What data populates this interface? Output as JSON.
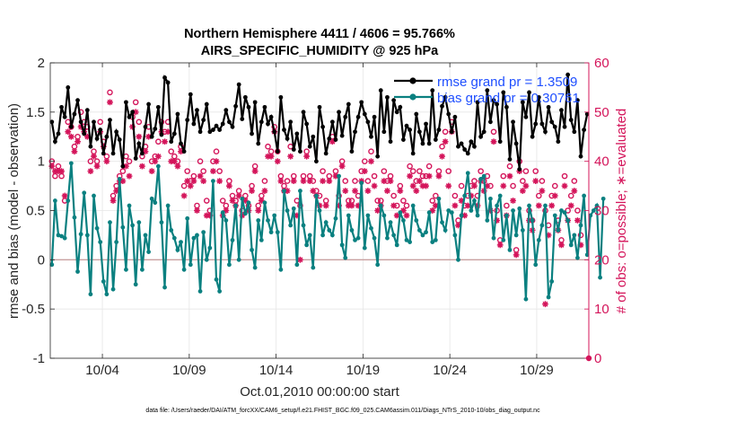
{
  "chart_data": {
    "type": "line",
    "title": [
      "Northern Hemisphere 4411 / 4606 = 95.766%",
      "AIRS_SPECIFIC_HUMIDITY @ 925 hPa"
    ],
    "xlabel": "Oct.01,2010 00:00:00 start",
    "ylabel_left": "rmse and bias (model - observation)",
    "ylabel_right": "# of obs: o=possible; ∗=evaluated",
    "footer": "data file: /Users/raeder/DAI/ATM_forcXX/CAM6_setup/f.e21.FHIST_BGC.f09_025.CAM6assim.011/Diags_NTrS_2010-10/obs_diag_output.nc",
    "xlim": [
      1.0,
      32.0
    ],
    "ylim_left": [
      -1,
      2
    ],
    "ylim_right": [
      0,
      60
    ],
    "x_ticks": [
      4,
      9,
      14,
      19,
      24,
      29
    ],
    "x_tick_labels": [
      "10/04",
      "10/09",
      "10/14",
      "10/19",
      "10/24",
      "10/29"
    ],
    "y_ticks_left": [
      -1,
      -0.5,
      0,
      0.5,
      1,
      1.5,
      2
    ],
    "y_tick_labels_left": [
      "-1",
      "-0.5",
      "0",
      "0.5",
      "1",
      "1.5",
      "2"
    ],
    "y_ticks_right": [
      0,
      10,
      20,
      30,
      40,
      50,
      60
    ],
    "y_tick_labels_right": [
      "0",
      "10",
      "20",
      "30",
      "40",
      "50",
      "60"
    ],
    "legend": [
      {
        "label": "rmse grand pr = 1.3509",
        "color": "#000000"
      },
      {
        "label": "bias grand pr = 0.30761",
        "color": "#008080"
      }
    ],
    "colors": {
      "rmse": "#000000",
      "bias": "#0a8080",
      "obs": "#d4145a",
      "legend_text": "#1f4fff",
      "zero_line": "#c9a0a0"
    },
    "series": [
      {
        "name": "rmse",
        "values": [
          1.4,
          1.2,
          1.28,
          1.55,
          1.45,
          1.75,
          1.35,
          1.48,
          1.62,
          1.4,
          1.28,
          1.52,
          1.15,
          1.4,
          1.23,
          1.32,
          1.08,
          1.25,
          1.42,
          1.08,
          1.3,
          1.22,
          0.95,
          1.6,
          1.45,
          1.5,
          1.03,
          1.18,
          1.08,
          1.35,
          1.58,
          1.25,
          1.33,
          1.55,
          1.27,
          1.85,
          1.8,
          1.2,
          1.28,
          1.48,
          1.18,
          1.1,
          1.42,
          1.68,
          1.38,
          1.52,
          1.3,
          1.42,
          1.58,
          1.3,
          1.32,
          1.36,
          1.32,
          1.38,
          1.52,
          1.4,
          1.35,
          1.56,
          1.78,
          1.43,
          1.65,
          1.55,
          1.28,
          1.6,
          1.18,
          1.4,
          1.55,
          1.38,
          1.45,
          1.3,
          1.1,
          1.65,
          1.32,
          1.23,
          1.4,
          1.12,
          1.28,
          1.1,
          1.5,
          1.38,
          1.15,
          1.25,
          1.0,
          1.55,
          1.35,
          1.08,
          1.23,
          1.4,
          1.22,
          1.5,
          1.26,
          1.45,
          1.58,
          1.1,
          1.3,
          1.45,
          1.6,
          1.48,
          1.4,
          1.25,
          1.45,
          1.05,
          1.72,
          1.3,
          1.65,
          1.2,
          1.62,
          1.5,
          1.55,
          1.22,
          1.36,
          1.32,
          1.08,
          1.48,
          1.3,
          1.18,
          1.38,
          1.18,
          1.72,
          1.22,
          1.32,
          1.56,
          1.65,
          1.48,
          1.3,
          1.45,
          1.15,
          1.18,
          1.12,
          1.08,
          1.2,
          1.15,
          1.6,
          1.25,
          1.3,
          1.72,
          1.4,
          1.62,
          1.58,
          1.2,
          1.7,
          1.55,
          1.02,
          1.4,
          1.18,
          0.92,
          1.6,
          1.45,
          1.7,
          1.25,
          1.38,
          1.65,
          1.38,
          1.3,
          1.55,
          1.4,
          1.35,
          1.2,
          1.52,
          1.35,
          1.88,
          1.42,
          1.3,
          1.62,
          1.05,
          1.32,
          1.48
        ]
      },
      {
        "name": "bias",
        "values": [
          -0.05,
          0.6,
          0.25,
          0.24,
          0.22,
          0.6,
          0.98,
          0.43,
          -0.12,
          0.26,
          0.68,
          0.25,
          -0.35,
          0.65,
          0.32,
          0.18,
          -0.22,
          -0.35,
          0.38,
          -0.3,
          0.18,
          0.82,
          0.33,
          -0.1,
          0.55,
          0.35,
          -0.25,
          0.38,
          -0.1,
          0.25,
          0.08,
          0.62,
          0.58,
          0.95,
          0.38,
          -0.28,
          0.55,
          0.3,
          0.22,
          0.1,
          0.18,
          -0.1,
          0.42,
          -0.05,
          0.22,
          0.25,
          -0.32,
          0.28,
          0.0,
          0.12,
          0.8,
          -0.2,
          -0.32,
          0.48,
          0.4,
          -0.05,
          0.2,
          0.55,
          0.0,
          0.62,
          0.47,
          0.58,
          0.1,
          -0.08,
          0.4,
          0.2,
          0.58,
          0.4,
          0.28,
          0.45,
          0.28,
          -0.1,
          0.7,
          0.5,
          0.35,
          0.52,
          -0.05,
          0.7,
          0.35,
          0.15,
          0.25,
          -0.08,
          0.65,
          0.5,
          0.25,
          0.38,
          0.3,
          0.25,
          0.42,
          0.85,
          0.15,
          0.02,
          0.45,
          0.3,
          0.2,
          0.22,
          0.78,
          0.12,
          0.45,
          0.32,
          0.22,
          -0.05,
          0.55,
          0.45,
          0.22,
          0.38,
          0.25,
          0.15,
          0.48,
          0.4,
          0.2,
          0.18,
          0.55,
          0.4,
          0.3,
          0.25,
          0.28,
          0.48,
          0.18,
          0.2,
          0.62,
          0.38,
          0.3,
          0.5,
          0.48,
          0.25,
          0.0,
          0.45,
          0.65,
          0.88,
          0.5,
          0.6,
          0.45,
          0.82,
          0.85,
          0.4,
          0.62,
          0.22,
          0.55,
          0.65,
          0.2,
          0.45,
          0.1,
          0.5,
          0.25,
          0.52,
          0.3,
          -0.4,
          0.55,
          0.4,
          -0.05,
          0.2,
          0.35,
          0.55,
          -0.38,
          -0.22,
          0.45,
          0.3,
          0.5,
          0.48,
          0.4,
          0.15,
          0.25,
          0.02,
          0.35,
          0.65,
          0.05,
          0.45,
          0.5,
          0.55,
          -0.18,
          0.62
        ]
      },
      {
        "name": "obs_possible",
        "values": [
          40,
          37,
          39,
          37,
          32,
          48,
          47,
          43,
          45,
          50,
          48,
          47,
          40,
          42,
          40,
          48,
          44,
          41,
          54,
          33,
          35,
          37,
          38,
          41,
          40,
          49,
          52,
          48,
          41,
          43,
          47,
          40,
          41,
          44,
          48,
          46,
          48,
          42,
          41,
          40,
          43,
          35,
          38,
          36,
          37,
          31,
          40,
          38,
          32,
          30,
          40,
          42,
          38,
          32,
          31,
          36,
          33,
          32,
          34,
          30,
          33,
          31,
          35,
          39,
          31,
          33,
          36,
          43,
          42,
          47,
          42,
          37,
          35,
          36,
          43,
          37,
          32,
          31,
          37,
          42,
          37,
          36,
          34,
          33,
          38,
          32,
          37,
          45,
          38,
          33,
          40,
          36,
          32,
          32,
          36,
          33,
          38,
          40,
          36,
          42,
          37,
          32,
          32,
          38,
          36,
          37,
          33,
          31,
          35,
          32,
          31,
          39,
          38,
          36,
          38,
          37,
          37,
          39,
          32,
          33,
          38,
          43,
          46,
          38,
          48,
          33,
          28,
          35,
          31,
          33,
          35,
          36,
          33,
          38,
          36,
          37,
          35,
          46,
          30,
          24,
          37,
          31,
          39,
          35,
          22,
          40,
          36,
          38,
          30,
          28,
          38,
          33,
          36,
          30,
          27,
          33,
          35,
          28,
          24,
          37,
          30,
          33,
          36,
          30,
          25
        ]
      },
      {
        "name": "obs_evaluated",
        "values": [
          39,
          38,
          38,
          38,
          33,
          46,
          45,
          42,
          44,
          47,
          46,
          45,
          38,
          41,
          39,
          46,
          43,
          40,
          52,
          32,
          34,
          36,
          36,
          39,
          37,
          47,
          50,
          45,
          39,
          42,
          45,
          38,
          40,
          41,
          46,
          44,
          46,
          40,
          40,
          39,
          42,
          33,
          36,
          35,
          36,
          30,
          37,
          36,
          29,
          29,
          38,
          40,
          36,
          29,
          30,
          35,
          32,
          31,
          33,
          29,
          32,
          30,
          34,
          38,
          30,
          32,
          34,
          41,
          41,
          46,
          40,
          36,
          34,
          34,
          41,
          36,
          29,
          20,
          36,
          41,
          36,
          34,
          33,
          31,
          36,
          31,
          36,
          44,
          37,
          31,
          39,
          34,
          31,
          31,
          34,
          31,
          36,
          38,
          34,
          40,
          35,
          30,
          31,
          36,
          34,
          36,
          31,
          29,
          34,
          30,
          29,
          37,
          35,
          34,
          36,
          35,
          35,
          37,
          30,
          31,
          37,
          41,
          44,
          35,
          46,
          31,
          27,
          32,
          29,
          31,
          33,
          35,
          31,
          36,
          34,
          35,
          30,
          44,
          28,
          23,
          35,
          29,
          37,
          32,
          21,
          38,
          34,
          35,
          28,
          26,
          36,
          31,
          34,
          11,
          25,
          31,
          33,
          26,
          23,
          35,
          28,
          31,
          34,
          28,
          23
        ]
      }
    ]
  }
}
